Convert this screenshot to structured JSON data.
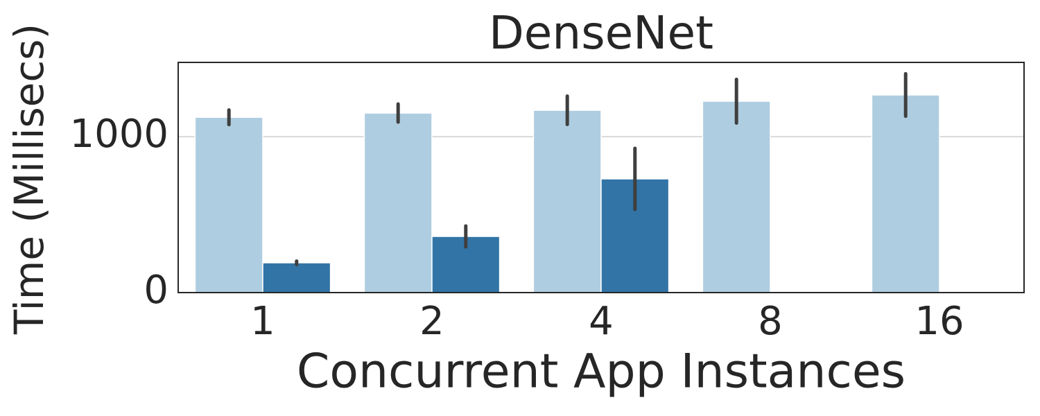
{
  "chart_data": {
    "type": "bar",
    "title": "DenseNet",
    "x_label": "Concurrent App Instances",
    "y_label": "Time (Millisecs)",
    "categories": [
      "1",
      "2",
      "4",
      "8",
      "16"
    ],
    "series": [
      {
        "color": "#afcde0",
        "values": [
          1124,
          1151,
          1169,
          1227,
          1267
        ],
        "errors": [
          47,
          58,
          91,
          140,
          136
        ]
      },
      {
        "color": "#3274a6",
        "values": [
          191,
          360,
          729,
          null,
          null
        ],
        "errors": [
          11,
          67,
          196,
          null,
          null
        ]
      }
    ],
    "ylim": [
      0,
      1476
    ],
    "yticks": [
      0,
      1000
    ],
    "grid": true
  }
}
